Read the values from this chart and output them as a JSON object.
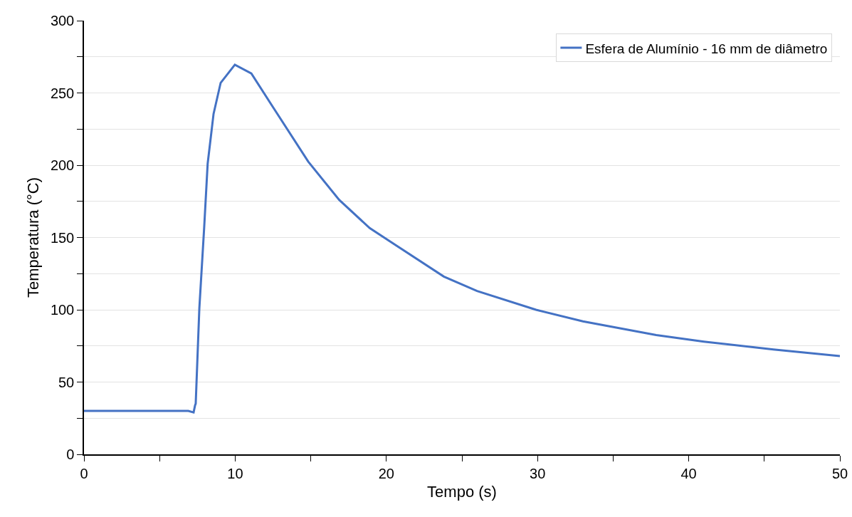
{
  "chart_data": {
    "type": "line",
    "xlabel": "Tempo (s)",
    "ylabel": "Temperatura (°C)",
    "x": [
      0,
      3,
      6.9,
      7.25,
      7.35,
      7.39,
      7.63,
      7.95,
      8.18,
      8.57,
      9.04,
      9.98,
      11.07,
      12.48,
      14.83,
      16.88,
      18.9,
      20.35,
      23.8,
      26,
      29.9,
      33,
      37.85,
      41,
      45.6,
      50
    ],
    "series": [
      {
        "name": "Esfera de Alumínio - 16 mm de diâmetro",
        "color": "#4472c4",
        "values": [
          30,
          30,
          30,
          29,
          34,
          35,
          101,
          157,
          201,
          235.5,
          257,
          269.5,
          263.5,
          240.5,
          202.5,
          176,
          156.5,
          146.5,
          123,
          113,
          100,
          92,
          82.5,
          78,
          72.5,
          68
        ]
      }
    ],
    "xlim": [
      0,
      50
    ],
    "ylim": [
      0,
      300
    ],
    "xticks": [
      0,
      {
        "value": 5,
        "label": null
      },
      10,
      {
        "value": 15,
        "label": null
      },
      20,
      {
        "value": 25,
        "label": null
      },
      30,
      {
        "value": 35,
        "label": null
      },
      40,
      {
        "value": 45,
        "label": null
      },
      50
    ],
    "yticks": [
      0,
      {
        "value": 25,
        "label": null
      },
      50,
      {
        "value": 75,
        "label": null
      },
      100,
      {
        "value": 125,
        "label": null
      },
      150,
      {
        "value": 175,
        "label": null
      },
      200,
      {
        "value": 225,
        "label": null
      },
      250,
      {
        "value": 275,
        "label": null
      },
      300
    ],
    "grid": "y",
    "legend": "top right",
    "marker": "none",
    "line_style": "solid"
  }
}
